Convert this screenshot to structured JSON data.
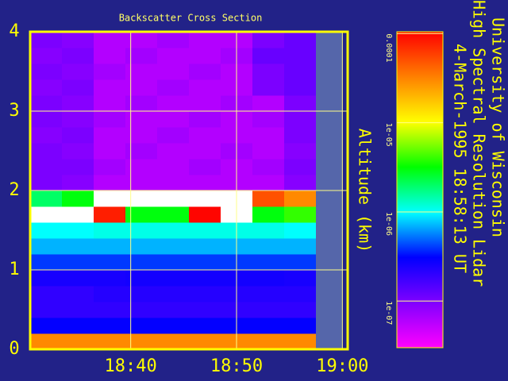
{
  "chart_data": {
    "type": "heatmap",
    "title": "Backscatter Cross Section",
    "header_lines": [
      "University of Wisconsin",
      "High Spectral Resolution Lidar",
      "4-March-1995 18:58:13 UT"
    ],
    "y_label": "Altitude (km)",
    "x": [
      "18:32",
      "18:35",
      "18:38",
      "18:41",
      "18:44",
      "18:47",
      "18:50",
      "18:53",
      "18:56"
    ],
    "y": [
      0.1,
      0.3,
      0.5,
      0.7,
      0.9,
      1.1,
      1.3,
      1.5,
      1.7,
      1.9,
      2.1,
      2.3,
      2.5,
      2.7,
      2.9,
      3.1,
      3.3,
      3.5,
      3.7,
      3.9
    ],
    "values": [
      [
        3e-05,
        3e-07,
        2e-07,
        2e-07,
        2.5e-07,
        4e-07,
        7e-07,
        1e-06,
        0.00015,
        2e-06,
        1e-07,
        1e-07,
        1e-07,
        9e-08,
        1e-07,
        1e-07,
        9e-08,
        1e-07,
        9e-08,
        1e-07
      ],
      [
        3e-05,
        3e-07,
        2e-07,
        2e-07,
        2.5e-07,
        4e-07,
        7e-07,
        1e-06,
        0.00012,
        3e-06,
        9e-08,
        1e-07,
        9e-08,
        1e-07,
        9e-08,
        9e-08,
        1e-07,
        9e-08,
        1e-07,
        9e-08
      ],
      [
        3e-05,
        3e-07,
        2e-07,
        2.2e-07,
        2.5e-07,
        4e-07,
        7e-07,
        1.1e-06,
        8e-05,
        0.0002,
        6e-08,
        7e-08,
        6e-08,
        6e-08,
        7e-08,
        6e-08,
        6e-08,
        7e-08,
        6e-08,
        6e-08
      ],
      [
        3e-05,
        3e-07,
        2e-07,
        2.2e-07,
        2.6e-07,
        4e-07,
        7e-07,
        1.1e-06,
        3e-06,
        0.0002,
        6e-08,
        6e-08,
        7e-08,
        6e-08,
        6e-08,
        7e-08,
        6e-08,
        6e-08,
        7e-08,
        6e-08
      ],
      [
        3e-05,
        3e-07,
        2e-07,
        2.2e-07,
        2.6e-07,
        4e-07,
        7e-07,
        1.1e-06,
        3e-06,
        0.0002,
        6e-08,
        6e-08,
        6e-08,
        7e-08,
        6e-08,
        6e-08,
        7e-08,
        6e-08,
        6e-08,
        7e-08
      ],
      [
        3e-05,
        3e-07,
        2e-07,
        2.2e-07,
        2.6e-07,
        4e-07,
        7e-07,
        1.1e-06,
        0.0001,
        0.0002,
        6e-08,
        7e-08,
        6e-08,
        6e-08,
        7e-08,
        6e-08,
        6e-08,
        7e-08,
        6e-08,
        6e-08
      ],
      [
        3e-05,
        3e-07,
        2e-07,
        2.2e-07,
        2.6e-07,
        4e-07,
        7e-07,
        1.1e-06,
        0.00015,
        0.0002,
        6e-08,
        6e-08,
        7e-08,
        6e-08,
        6e-08,
        7e-08,
        6e-08,
        6e-08,
        7e-08,
        6e-08
      ],
      [
        3e-05,
        3e-07,
        2e-07,
        2.2e-07,
        2.6e-07,
        4e-07,
        7e-07,
        1.1e-06,
        3e-06,
        5e-05,
        6e-08,
        7e-08,
        6e-08,
        6e-08,
        7e-08,
        6e-08,
        1e-07,
        1e-07,
        1.2e-07,
        1e-07
      ],
      [
        3e-05,
        3e-07,
        2e-07,
        2.2e-07,
        2.5e-07,
        4e-07,
        7e-07,
        1e-06,
        4e-06,
        3e-05,
        9e-08,
        1e-07,
        9e-08,
        1e-07,
        1e-07,
        1e-07,
        1.2e-07,
        1.2e-07,
        1.2e-07,
        1.2e-07
      ]
    ],
    "xlim": [
      "18:30:30",
      "19:00:30"
    ],
    "xticks": [
      "18:40",
      "18:50",
      "19:00"
    ],
    "ylim": [
      0,
      4
    ],
    "yticks": [
      0,
      1,
      2,
      3,
      4
    ],
    "clim": [
      3e-08,
      0.000105
    ],
    "cticks": [
      {
        "value": 0.0001,
        "label": "0.0001"
      },
      {
        "value": 1e-05,
        "label": "1e-05"
      },
      {
        "value": 1e-06,
        "label": "1e-06"
      },
      {
        "value": 1e-07,
        "label": "1e-07"
      }
    ],
    "log_color_scale": true,
    "colormap": [
      "#ff00ff",
      "#8000ff",
      "#0000ff",
      "#00ffff",
      "#00ff00",
      "#ffff00",
      "#ff8000",
      "#ff0000"
    ],
    "grid": true
  }
}
